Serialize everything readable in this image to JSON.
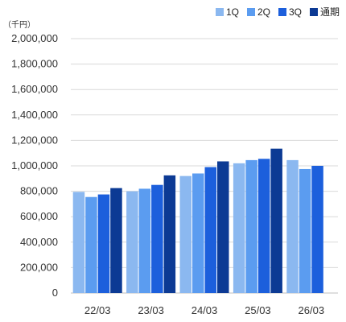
{
  "chart_data": {
    "type": "bar",
    "unit": "（千円）",
    "categories": [
      "22/03",
      "23/03",
      "24/03",
      "25/03",
      "26/03"
    ],
    "series": [
      {
        "name": "1Q",
        "color": "#8BB8F0",
        "values": [
          795000,
          800000,
          920000,
          1020000,
          1045000
        ]
      },
      {
        "name": "2Q",
        "color": "#5B9CF0",
        "values": [
          755000,
          820000,
          940000,
          1045000,
          975000
        ]
      },
      {
        "name": "3Q",
        "color": "#1C5FDC",
        "values": [
          775000,
          850000,
          990000,
          1055000,
          1000000
        ]
      },
      {
        "name": "通期",
        "color": "#0C3A94",
        "values": [
          825000,
          925000,
          1035000,
          1135000,
          null
        ]
      }
    ],
    "ylim": [
      0,
      2000000
    ],
    "yticks": [
      "0",
      "200,000",
      "400,000",
      "600,000",
      "800,000",
      "1,000,000",
      "1,200,000",
      "1,400,000",
      "1,600,000",
      "1,800,000",
      "2,000,000"
    ],
    "grid": true,
    "legend_position": "top-right"
  }
}
